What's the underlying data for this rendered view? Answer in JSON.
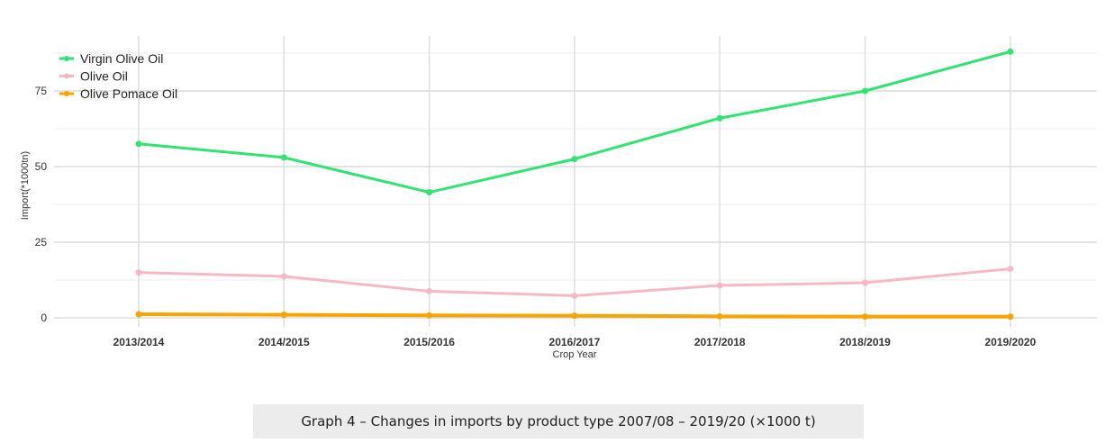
{
  "chart_data": {
    "type": "line",
    "title": "",
    "xlabel": "Crop Year",
    "ylabel": "Import(*1000tn)",
    "categories": [
      "2013/2014",
      "2014/2015",
      "2015/2016",
      "2016/2017",
      "2017/2018",
      "2018/2019",
      "2019/2020"
    ],
    "ylim": [
      0,
      92
    ],
    "yticks": [
      "0",
      "25",
      "50",
      "75"
    ],
    "grid": true,
    "legend_position": "top-left",
    "series": [
      {
        "name": "Virgin Olive Oil",
        "color": "#2ee56f",
        "values": [
          57.5,
          53,
          41.5,
          52.5,
          66,
          75,
          88
        ]
      },
      {
        "name": "Olive Oil",
        "color": "#f7b8c6",
        "values": [
          15,
          13.7,
          8.8,
          7.3,
          10.7,
          11.6,
          16.2
        ]
      },
      {
        "name": "Olive Pomace Oil",
        "color": "#f5a400",
        "values": [
          1.2,
          1.0,
          0.8,
          0.7,
          0.5,
          0.4,
          0.4
        ]
      }
    ]
  },
  "caption": "Graph 4 – Changes in imports by product type 2007/08 – 2019/20 (×1000 t)"
}
